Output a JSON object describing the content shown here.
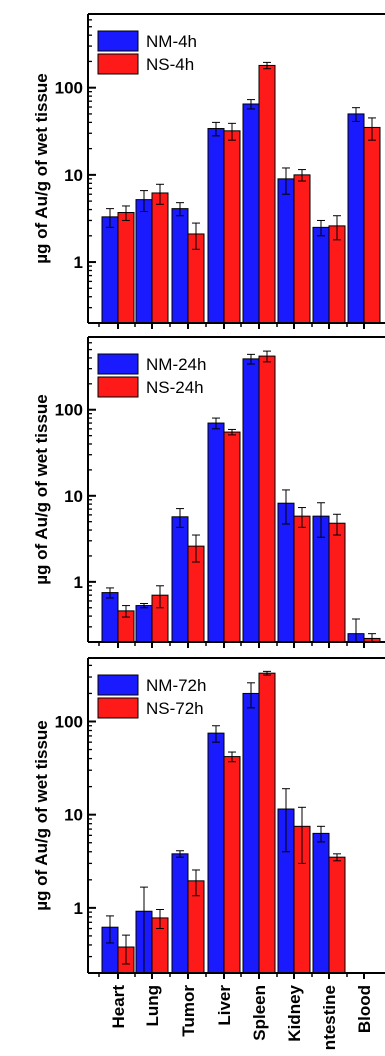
{
  "colors": {
    "nm": "#1a1aff",
    "ns": "#ff1a1a",
    "axis": "#000000"
  },
  "chart_data": [
    {
      "type": "bar",
      "yscale": "log",
      "ylim": [
        0.2,
        700
      ],
      "yticks": [
        1,
        10,
        100
      ],
      "ytick_labels": [
        "1",
        "10",
        "100"
      ],
      "ylabel": "µg of Au/g of wet tissue",
      "legend_position": "top-left",
      "categories": [
        "Heart",
        "Lung",
        "Tumor",
        "Liver",
        "Spleen",
        "Kidney",
        "Intestine",
        "Blood"
      ],
      "series": [
        {
          "name": "NM-4h",
          "color": "#1a1aff",
          "values": [
            3.3,
            5.2,
            4.1,
            34,
            65,
            9,
            2.5,
            50
          ],
          "errors": [
            0.8,
            1.4,
            0.7,
            6,
            8,
            3,
            0.5,
            9
          ]
        },
        {
          "name": "NS-4h",
          "color": "#ff1a1a",
          "values": [
            3.7,
            6.2,
            2.1,
            32,
            180,
            10,
            2.6,
            35
          ],
          "errors": [
            0.7,
            1.6,
            0.7,
            7,
            15,
            1.5,
            0.8,
            10
          ]
        }
      ]
    },
    {
      "type": "bar",
      "yscale": "log",
      "ylim": [
        0.2,
        700
      ],
      "yticks": [
        1,
        10,
        100
      ],
      "ytick_labels": [
        "1",
        "10",
        "100"
      ],
      "ylabel": "µg of Au/g of wet tissue",
      "legend_position": "top-left",
      "categories": [
        "Heart",
        "Lung",
        "Tumor",
        "Liver",
        "Spleen",
        "Kidney",
        "Intestine",
        "Blood"
      ],
      "series": [
        {
          "name": "NM-24h",
          "color": "#1a1aff",
          "values": [
            0.75,
            0.53,
            5.7,
            70,
            390,
            8.2,
            5.8,
            0.25
          ],
          "errors": [
            0.1,
            0.03,
            1.4,
            10,
            50,
            3.5,
            2.5,
            0.12
          ]
        },
        {
          "name": "NS-24h",
          "color": "#ff1a1a",
          "values": [
            0.46,
            0.7,
            2.6,
            55,
            420,
            5.8,
            4.8,
            0.22
          ],
          "errors": [
            0.07,
            0.2,
            0.9,
            4,
            60,
            1.5,
            1.3,
            0.03
          ]
        }
      ]
    },
    {
      "type": "bar",
      "yscale": "log",
      "ylim": [
        0.2,
        480
      ],
      "yticks": [
        1,
        10,
        100
      ],
      "ytick_labels": [
        "1",
        "10",
        "100"
      ],
      "ylabel": "µg of Au/g of wet tissue",
      "legend_position": "top-left",
      "categories": [
        "Heart",
        "Lung",
        "Tumor",
        "Liver",
        "Spleen",
        "Kidney",
        "Intestine",
        "Blood"
      ],
      "xtick_labels": [
        "Heart",
        "Lung",
        "Tumor",
        "Liver",
        "Spleen",
        "Kidney",
        "ntestine",
        "Blood"
      ],
      "series": [
        {
          "name": "NM-72h",
          "color": "#1a1aff",
          "values": [
            0.62,
            0.92,
            3.8,
            75,
            200,
            11.5,
            6.3,
            null
          ],
          "errors": [
            0.2,
            0.75,
            0.3,
            15,
            60,
            7.5,
            1.2,
            null
          ]
        },
        {
          "name": "NS-72h",
          "color": "#ff1a1a",
          "values": [
            0.38,
            0.78,
            1.95,
            42,
            330,
            7.5,
            3.5,
            null
          ],
          "errors": [
            0.13,
            0.18,
            0.6,
            5,
            15,
            4.5,
            0.3,
            null
          ]
        }
      ]
    }
  ]
}
